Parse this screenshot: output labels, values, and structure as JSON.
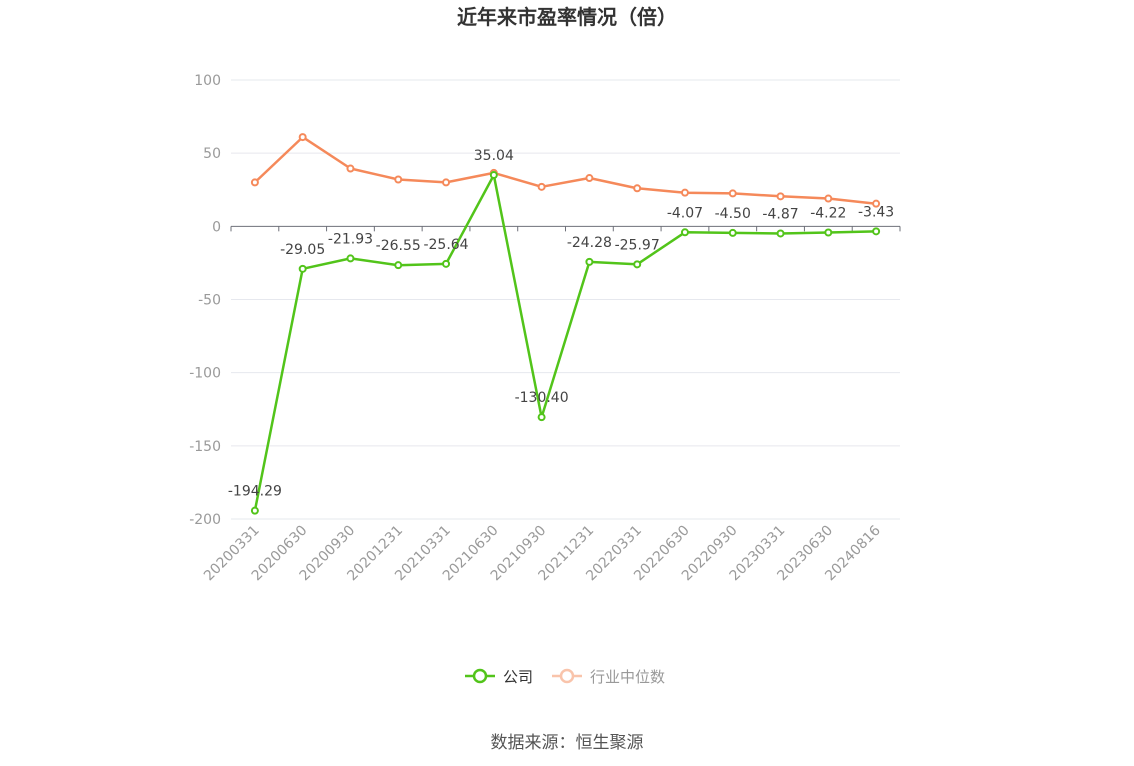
{
  "chart_data": {
    "type": "line",
    "title": "近年来市盈率情况（倍）",
    "categories": [
      "20200331",
      "20200630",
      "20200930",
      "20201231",
      "20210331",
      "20210630",
      "20210930",
      "20211231",
      "20220331",
      "20220630",
      "20220930",
      "20230331",
      "20230630",
      "20240816"
    ],
    "ylim": [
      -200,
      100
    ],
    "yticks": [
      100,
      50,
      0,
      -50,
      -100,
      -150,
      -200
    ],
    "grid": true,
    "legend_position": "bottom",
    "series": [
      {
        "name": "公司",
        "color": "#52c41a",
        "values": [
          -194.29,
          -29.05,
          -21.93,
          -26.55,
          -25.64,
          35.04,
          -130.4,
          -24.28,
          -25.97,
          -4.07,
          -4.5,
          -4.87,
          -4.22,
          -3.43
        ],
        "labels": [
          "-194.29",
          "-29.05",
          "-21.93",
          "-26.55",
          "-25.64",
          "35.04",
          "-130.40",
          "-24.28",
          "-25.97",
          "-4.07",
          "-4.50",
          "-4.87",
          "-4.22",
          "-3.43"
        ]
      },
      {
        "name": "行业中位数",
        "color": "#f5895a",
        "values": [
          30.0,
          61.0,
          39.5,
          32.0,
          30.0,
          36.5,
          27.0,
          33.0,
          26.0,
          23.0,
          22.5,
          20.5,
          19.0,
          15.5
        ]
      }
    ]
  },
  "source": "数据来源：恒生聚源"
}
